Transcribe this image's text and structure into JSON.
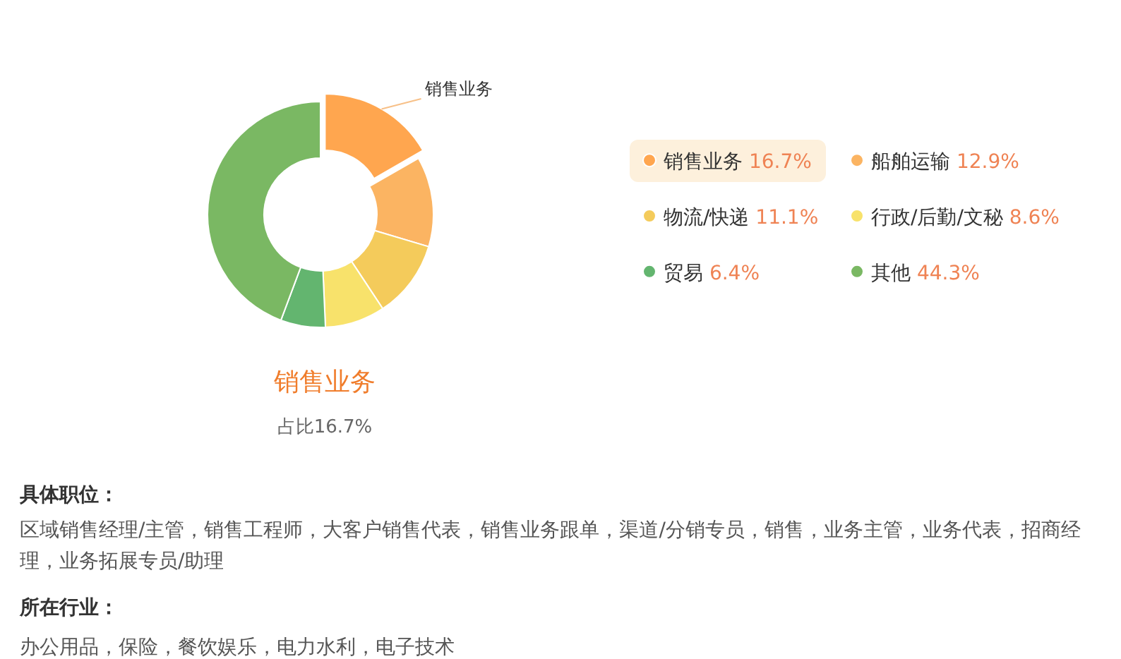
{
  "chart_data": {
    "type": "donut",
    "title": "销售业务",
    "subtitle": "占比16.7%",
    "categories": [
      "销售业务",
      "船舶运输",
      "物流/快递",
      "行政/后勤/文秘",
      "贸易",
      "其他"
    ],
    "values": [
      16.7,
      12.9,
      11.1,
      8.6,
      6.4,
      44.3
    ],
    "colors": [
      "#ffa64f",
      "#fbb462",
      "#f4cb5b",
      "#f8e26b",
      "#63b56f",
      "#7ab863"
    ],
    "value_labels": [
      "16.7%",
      "12.9%",
      "11.1%",
      "8.6%",
      "6.4%",
      "44.3%"
    ],
    "legend": "right",
    "annotations": [
      {
        "text": "销售业务",
        "x": "销售业务"
      },
      "具体职位：",
      "区域销售经理/主管，销售工程师，大客户销售代表，销售业务跟单，渠道/分销专员，销售，业务主管，业务代表，招商经理，业务拓展专员/助理",
      "所在行业：",
      "办公用品，保险，餐饮娱乐，电力水利，电子技术"
    ]
  }
}
